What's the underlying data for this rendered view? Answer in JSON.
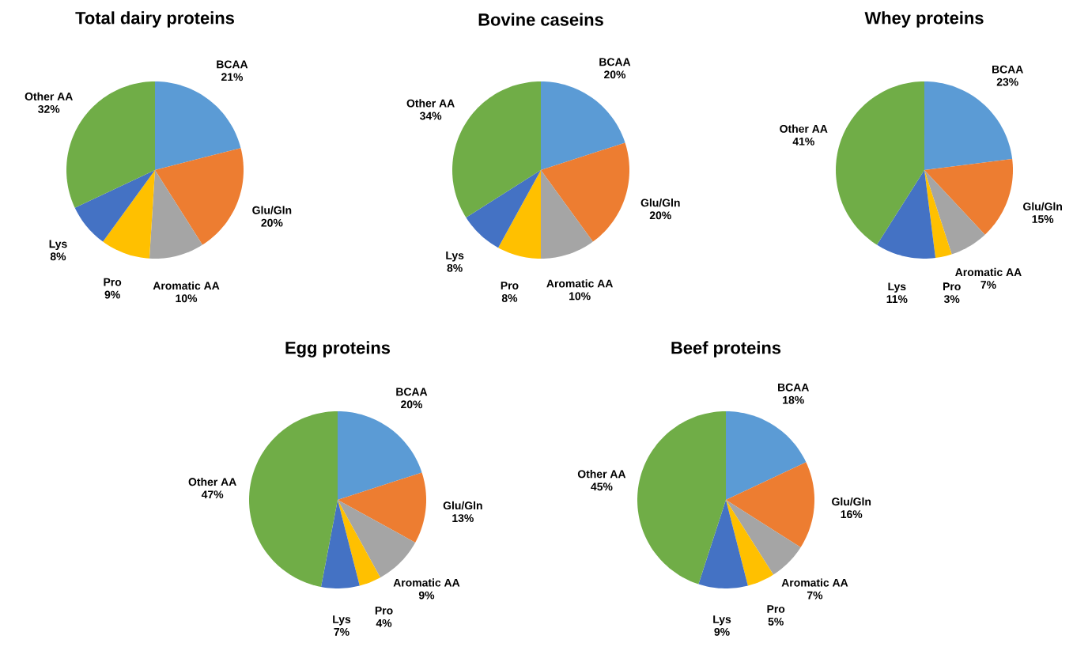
{
  "chart_data": [
    {
      "type": "pie",
      "title": "Total dairy proteins",
      "categories": [
        "BCAA",
        "Glu/Gln",
        "Aromatic AA",
        "Pro",
        "Lys",
        "Other AA"
      ],
      "values": [
        21,
        20,
        10,
        9,
        8,
        32
      ],
      "value_labels": [
        "21%",
        "20%",
        "10%",
        "9%",
        "8%",
        "32%"
      ],
      "colors": [
        "#5b9bd5",
        "#ed7d31",
        "#a5a5a5",
        "#ffc000",
        "#4472c4",
        "#70ad47"
      ]
    },
    {
      "type": "pie",
      "title": "Bovine caseins",
      "categories": [
        "BCAA",
        "Glu/Gln",
        "Aromatic AA",
        "Pro",
        "Lys",
        "Other AA"
      ],
      "values": [
        20,
        20,
        10,
        8,
        8,
        34
      ],
      "value_labels": [
        "20%",
        "20%",
        "10%",
        "8%",
        "8%",
        "34%"
      ],
      "colors": [
        "#5b9bd5",
        "#ed7d31",
        "#a5a5a5",
        "#ffc000",
        "#4472c4",
        "#70ad47"
      ]
    },
    {
      "type": "pie",
      "title": "Whey proteins",
      "categories": [
        "BCAA",
        "Glu/Gln",
        "Aromatic AA",
        "Pro",
        "Lys",
        "Other AA"
      ],
      "values": [
        23,
        15,
        7,
        3,
        11,
        41
      ],
      "value_labels": [
        "23%",
        "15%",
        "7%",
        "3%",
        "11%",
        "41%"
      ],
      "colors": [
        "#5b9bd5",
        "#ed7d31",
        "#a5a5a5",
        "#ffc000",
        "#4472c4",
        "#70ad47"
      ]
    },
    {
      "type": "pie",
      "title": "Egg proteins",
      "categories": [
        "BCAA",
        "Glu/Gln",
        "Aromatic AA",
        "Pro",
        "Lys",
        "Other AA"
      ],
      "values": [
        20,
        13,
        9,
        4,
        7,
        47
      ],
      "value_labels": [
        "20%",
        "13%",
        "9%",
        "4%",
        "7%",
        "47%"
      ],
      "colors": [
        "#5b9bd5",
        "#ed7d31",
        "#a5a5a5",
        "#ffc000",
        "#4472c4",
        "#70ad47"
      ]
    },
    {
      "type": "pie",
      "title": "Beef proteins",
      "categories": [
        "BCAA",
        "Glu/Gln",
        "Aromatic AA",
        "Pro",
        "Lys",
        "Other AA"
      ],
      "values": [
        18,
        16,
        7,
        5,
        9,
        45
      ],
      "value_labels": [
        "18%",
        "16%",
        "7%",
        "5%",
        "9%",
        "45%"
      ],
      "colors": [
        "#5b9bd5",
        "#ed7d31",
        "#a5a5a5",
        "#ffc000",
        "#4472c4",
        "#70ad47"
      ]
    }
  ]
}
